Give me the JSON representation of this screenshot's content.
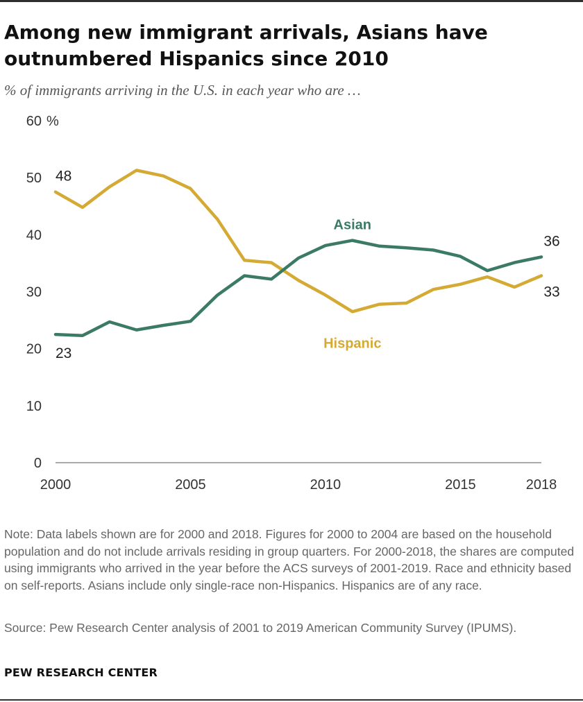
{
  "title": "Among new immigrant arrivals, Asians have outnumbered Hispanics since 2010",
  "subtitle": "% of immigrants arriving in the U.S. in each year who are …",
  "note": "Note: Data labels shown are for 2000 and 2018. Figures for 2000 to 2004 are based on the household population and do not include arrivals residing in group quarters. For 2000-2018, the shares are computed using immigrants who arrived in the year before the ACS surveys of 2001-2019. Race and ethnicity based on self-reports. Asians include only single-race non-Hispanics. Hispanics are of any race.",
  "source": "Source: Pew Research Center analysis of 2001 to 2019 American Community Survey (IPUMS).",
  "brand": "PEW RESEARCH CENTER",
  "chart_data": {
    "type": "line",
    "x": [
      2000,
      2001,
      2002,
      2003,
      2004,
      2005,
      2006,
      2007,
      2008,
      2009,
      2010,
      2011,
      2012,
      2013,
      2014,
      2015,
      2016,
      2017,
      2018
    ],
    "series": [
      {
        "name": "Hispanic",
        "color": "#d4aa34",
        "values": [
          47.5,
          44.8,
          48.4,
          51.3,
          50.3,
          48.1,
          42.7,
          35.5,
          35.1,
          32.0,
          29.4,
          26.5,
          27.8,
          28.0,
          30.4,
          31.3,
          32.6,
          30.8,
          32.8
        ],
        "start_label": "48",
        "end_label": "33"
      },
      {
        "name": "Asian",
        "color": "#3b7a65",
        "values": [
          22.5,
          22.3,
          24.7,
          23.3,
          24.1,
          24.8,
          29.4,
          32.8,
          32.2,
          35.9,
          38.1,
          39.0,
          38.0,
          37.7,
          37.3,
          36.2,
          33.7,
          35.1,
          36.1
        ],
        "start_label": "23",
        "end_label": "36"
      }
    ],
    "yticks": [
      "0",
      "10",
      "20",
      "30",
      "40",
      "50",
      "60"
    ],
    "ytick_unit": "%",
    "xticks": [
      "2000",
      "2005",
      "2010",
      "2015",
      "2018"
    ],
    "xtick_values": [
      2000,
      2005,
      2010,
      2015,
      2018
    ],
    "ylim": [
      0,
      60
    ],
    "xlim": [
      2000,
      2018
    ],
    "grid": false
  }
}
